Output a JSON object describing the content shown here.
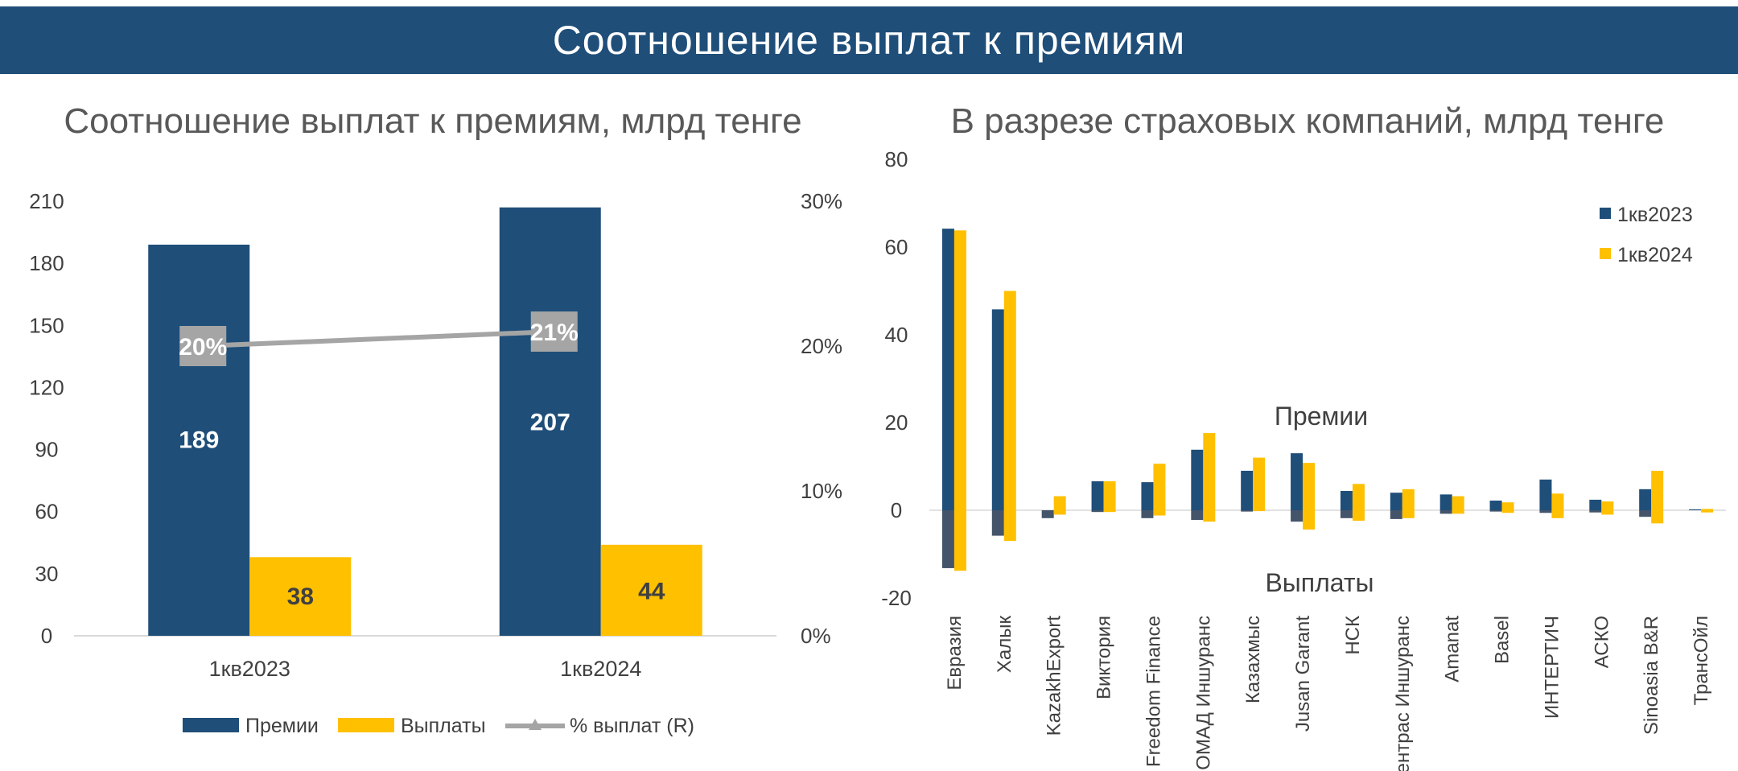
{
  "header": {
    "title": "Соотношение выплат к премиям"
  },
  "colors": {
    "premiums": "#1f4e79",
    "payouts": "#ffc000",
    "ratio_line": "#a5a5a5",
    "banner": "#1f4e79"
  },
  "chart_data": [
    {
      "type": "bar",
      "title": "Соотношение выплат к премиям, млрд тенге",
      "categories": [
        "1кв2023",
        "1кв2024"
      ],
      "series": [
        {
          "name": "Премии",
          "values": [
            189,
            207
          ],
          "labels": [
            "189",
            "207"
          ]
        },
        {
          "name": "Выплаты",
          "values": [
            38,
            44
          ],
          "labels": [
            "38",
            "44"
          ]
        }
      ],
      "line_series": {
        "name": "% выплат (R)",
        "values": [
          20,
          21
        ],
        "labels": [
          "20%",
          "21%"
        ],
        "axis": "right"
      },
      "ylim": [
        0,
        210
      ],
      "yticks": [
        0,
        30,
        60,
        90,
        120,
        150,
        180,
        210
      ],
      "y2lim": [
        0,
        30
      ],
      "y2ticks": [
        "0%",
        "10%",
        "20%",
        "30%"
      ],
      "legend": "bottom",
      "legend_labels": [
        "Премии",
        "Выплаты",
        "% выплат (R)"
      ]
    },
    {
      "type": "bar",
      "title": "В разрезе страховых компаний, млрд тенге",
      "categories": [
        "Евразия",
        "Халык",
        "KazakhExport",
        "Виктория",
        "Freedom Finance",
        "НОМАД Иншуранс",
        "Казахмыс",
        "Jusan Garant",
        "НСК",
        "Сентрас Иншуранс",
        "Amanat",
        "Basel",
        "ИНТЕРТИЧ",
        "АСКО",
        "Sinoasia B&R",
        "ТрансОйл"
      ],
      "series": [
        {
          "name": "1кв2023",
          "premiums": [
            64.2,
            45.8,
            0,
            6.6,
            6.4,
            13.8,
            9.0,
            13.0,
            4.4,
            4.0,
            3.6,
            2.2,
            7.0,
            2.4,
            4.8,
            0.2
          ],
          "payouts": [
            -13.2,
            -5.8,
            -1.8,
            -0.4,
            -1.8,
            -2.2,
            -0.3,
            -2.6,
            -1.8,
            -2.0,
            -0.8,
            -0.3,
            -0.6,
            -0.5,
            -1.5,
            0
          ]
        },
        {
          "name": "1кв2024",
          "premiums": [
            63.8,
            50.0,
            3.2,
            6.6,
            10.6,
            17.6,
            12.0,
            10.8,
            6.0,
            4.8,
            3.2,
            1.8,
            3.8,
            2.0,
            9.0,
            0.3
          ],
          "payouts": [
            -13.8,
            -7.0,
            -1.0,
            -0.4,
            -1.2,
            -2.6,
            -0.2,
            -4.4,
            -2.4,
            -1.8,
            -0.8,
            -0.6,
            -1.8,
            -1.0,
            -3.0,
            -0.5
          ]
        }
      ],
      "ylim": [
        -20,
        80
      ],
      "yticks": [
        -20,
        0,
        20,
        40,
        60,
        80
      ],
      "annotations": [
        "Премии",
        "Выплаты"
      ],
      "legend": "top-right"
    }
  ]
}
